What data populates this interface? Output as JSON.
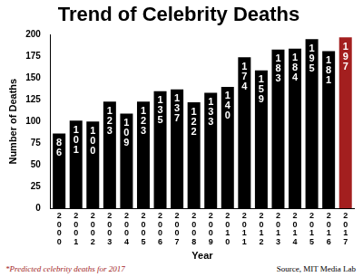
{
  "chart_data": {
    "type": "bar",
    "title": "Trend of Celebrity Deaths",
    "x_label": "Year",
    "y_label": "Number of Deaths",
    "categories": [
      "2000",
      "2001",
      "2002",
      "2003",
      "2004",
      "2005",
      "2006",
      "2007",
      "2008",
      "2009",
      "2010",
      "2011",
      "2012",
      "2013",
      "2014",
      "2015",
      "2016",
      "2017"
    ],
    "values": [
      86,
      101,
      100,
      123,
      109,
      123,
      135,
      137,
      122,
      133,
      140,
      174,
      159,
      183,
      184,
      195,
      181,
      197
    ],
    "colors": [
      "#000000",
      "#000000",
      "#000000",
      "#000000",
      "#000000",
      "#000000",
      "#000000",
      "#000000",
      "#000000",
      "#000000",
      "#000000",
      "#000000",
      "#000000",
      "#000000",
      "#000000",
      "#000000",
      "#000000",
      "#a31f1f"
    ],
    "ylim": [
      0,
      200
    ],
    "yticks": [
      0,
      25,
      50,
      75,
      100,
      125,
      150,
      175,
      200
    ],
    "grid": false,
    "data_labels": true,
    "annotations": [
      "*Predicted celebrity deaths for 2017",
      "Source, MIT Media Lab"
    ]
  }
}
